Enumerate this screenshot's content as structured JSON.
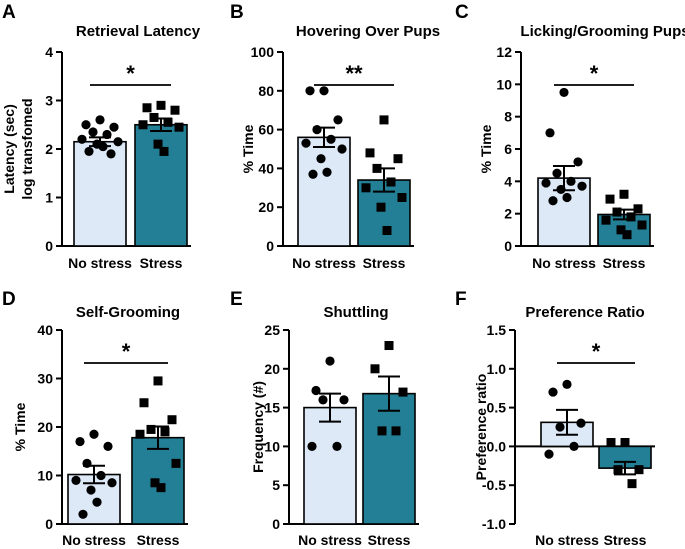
{
  "colors": {
    "no_stress_fill": "#dde9f7",
    "stress_fill": "#237f96",
    "axis": "#000000",
    "points": "#000000"
  },
  "chart_data": [
    {
      "type": "bar",
      "letter": "A",
      "title": "Retrieval Latency",
      "ylabel": [
        "Latency (sec)",
        "log transfomed"
      ],
      "categories": [
        "No stress",
        "Stress"
      ],
      "ylim": [
        0,
        4
      ],
      "yticks": [
        0,
        1,
        2,
        3,
        4
      ],
      "means": [
        2.15,
        2.5
      ],
      "sems": [
        0.09,
        0.13
      ],
      "significance": "*",
      "points": [
        [
          2.6,
          2.5,
          2.45,
          2.35,
          2.3,
          2.2,
          2.15,
          2.1,
          2.05,
          1.95,
          1.9
        ],
        [
          2.9,
          2.85,
          2.8,
          2.65,
          2.55,
          2.5,
          2.45,
          2.1,
          1.95
        ]
      ]
    },
    {
      "type": "bar",
      "letter": "B",
      "title": "Hovering Over Pups",
      "ylabel": [
        "% Time"
      ],
      "categories": [
        "No stress",
        "Stress"
      ],
      "ylim": [
        0,
        100
      ],
      "yticks": [
        0,
        20,
        40,
        60,
        80,
        100
      ],
      "means": [
        56,
        34
      ],
      "sems": [
        5,
        6
      ],
      "significance": "**",
      "points": [
        [
          80,
          80,
          65,
          60,
          55,
          53,
          50,
          45,
          38,
          37
        ],
        [
          65,
          48,
          45,
          40,
          33,
          30,
          25,
          20,
          8
        ]
      ]
    },
    {
      "type": "bar",
      "letter": "C",
      "title": "Licking/Grooming Pups",
      "ylabel": [
        "% Time"
      ],
      "categories": [
        "No stress",
        "Stress"
      ],
      "ylim": [
        0,
        12
      ],
      "yticks": [
        0,
        2,
        4,
        6,
        8,
        10,
        12
      ],
      "means": [
        4.2,
        1.95
      ],
      "sems": [
        0.75,
        0.3
      ],
      "significance": "*",
      "points": [
        [
          9.5,
          7,
          5.2,
          4.5,
          4,
          3.9,
          3.7,
          3.5,
          3,
          2.8
        ],
        [
          3.2,
          2.9,
          2.3,
          2.1,
          1.8,
          1.6,
          1.3,
          1.0,
          0.7
        ]
      ]
    },
    {
      "type": "bar",
      "letter": "D",
      "title": "Self-Grooming",
      "ylabel": [
        "% Time"
      ],
      "categories": [
        "No stress",
        "Stress"
      ],
      "ylim": [
        0,
        40
      ],
      "yticks": [
        0,
        10,
        20,
        30,
        40
      ],
      "means": [
        10.2,
        17.8
      ],
      "sems": [
        1.8,
        2.3
      ],
      "significance": "*",
      "points": [
        [
          18.5,
          17,
          16,
          12.5,
          10,
          9,
          8.5,
          7,
          4.5,
          2
        ],
        [
          29.5,
          25,
          21.5,
          19.5,
          19,
          18.5,
          12.5,
          8.5,
          7.5
        ]
      ]
    },
    {
      "type": "bar",
      "letter": "E",
      "title": "Shuttling",
      "ylabel": [
        "Frequency (#)"
      ],
      "categories": [
        "No stress",
        "Stress"
      ],
      "ylim": [
        0,
        25
      ],
      "yticks": [
        0,
        5,
        10,
        15,
        20,
        25
      ],
      "means": [
        15,
        16.8
      ],
      "sems": [
        1.8,
        2.2
      ],
      "significance": "",
      "points": [
        [
          21,
          17.2,
          16,
          16,
          10,
          10
        ],
        [
          23,
          20,
          17,
          12,
          12
        ]
      ]
    },
    {
      "type": "bar",
      "letter": "F",
      "title": "Preference Ratio",
      "ylabel": [
        "Preference ratio"
      ],
      "categories": [
        "No stress",
        "Stress"
      ],
      "ylim": [
        -1.0,
        1.5
      ],
      "yticks": [
        -1.0,
        -0.5,
        0.0,
        0.5,
        1.0,
        1.5
      ],
      "tickdecimals": 1,
      "means": [
        0.31,
        -0.28
      ],
      "sems": [
        0.16,
        0.08
      ],
      "significance": "*",
      "points": [
        [
          0.8,
          0.7,
          0.3,
          0.25,
          0.0,
          -0.1
        ],
        [
          0.05,
          0.05,
          -0.3,
          -0.3,
          -0.48
        ]
      ]
    }
  ]
}
